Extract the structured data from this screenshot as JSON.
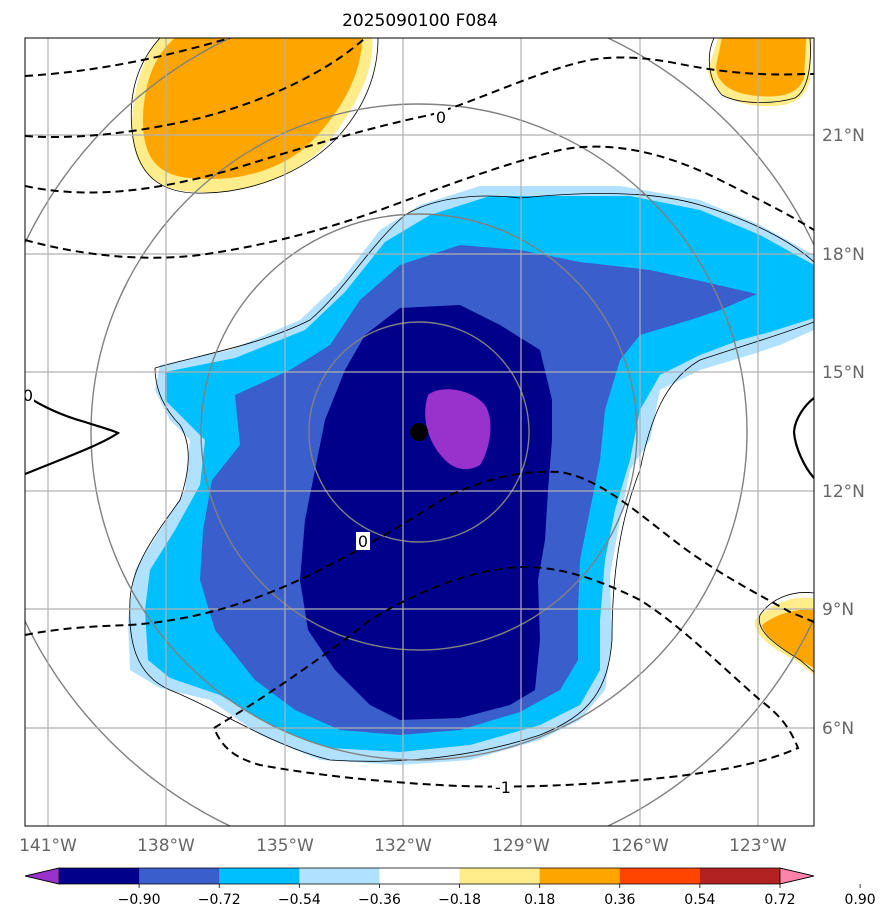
{
  "title": "2025090100 F084",
  "map": {
    "lon_labels": [
      "141°W",
      "138°W",
      "135°W",
      "132°W",
      "129°W",
      "126°W",
      "123°W"
    ],
    "lat_labels": [
      "21°N",
      "18°N",
      "15°N",
      "12°N",
      "9°N",
      "6°N"
    ],
    "contour_labels": [
      "0",
      "0",
      "0",
      "-1"
    ],
    "center_marker": "storm center"
  },
  "colorbar": {
    "ticks": [
      "−0.90",
      "−0.72",
      "−0.54",
      "−0.36",
      "−0.18",
      "0.18",
      "0.36",
      "0.54",
      "0.72",
      "0.90"
    ],
    "colors": [
      "#9932cc",
      "#00008b",
      "#3a5fcd",
      "#00bfff",
      "#b0e2ff",
      "#ffffff",
      "#ffec8b",
      "#ffa500",
      "#ff4500",
      "#b22222",
      "#ff82ab"
    ]
  }
}
